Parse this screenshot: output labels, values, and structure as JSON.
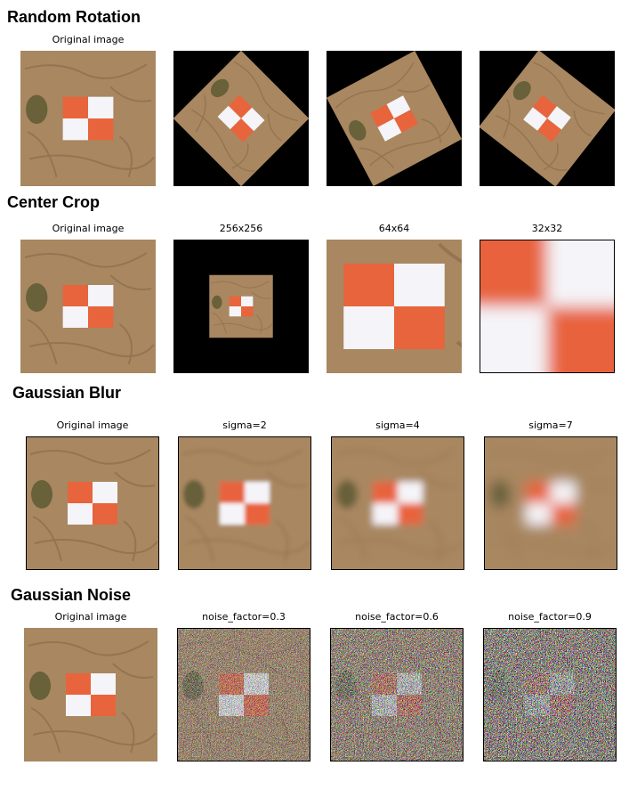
{
  "sections": [
    {
      "title": "Random Rotation",
      "captions": [
        "Original image"
      ]
    },
    {
      "title": "Center Crop",
      "captions": [
        "Original image",
        "256x256",
        "64x64",
        "32x32"
      ]
    },
    {
      "title": "Gaussian Blur",
      "captions": [
        "Original image",
        "sigma=2",
        "sigma=4",
        "sigma=7"
      ]
    },
    {
      "title": "Gaussian Noise",
      "captions": [
        "Original image",
        "noise_factor=0.3",
        "noise_factor=0.6",
        "noise_factor=0.9"
      ]
    }
  ]
}
